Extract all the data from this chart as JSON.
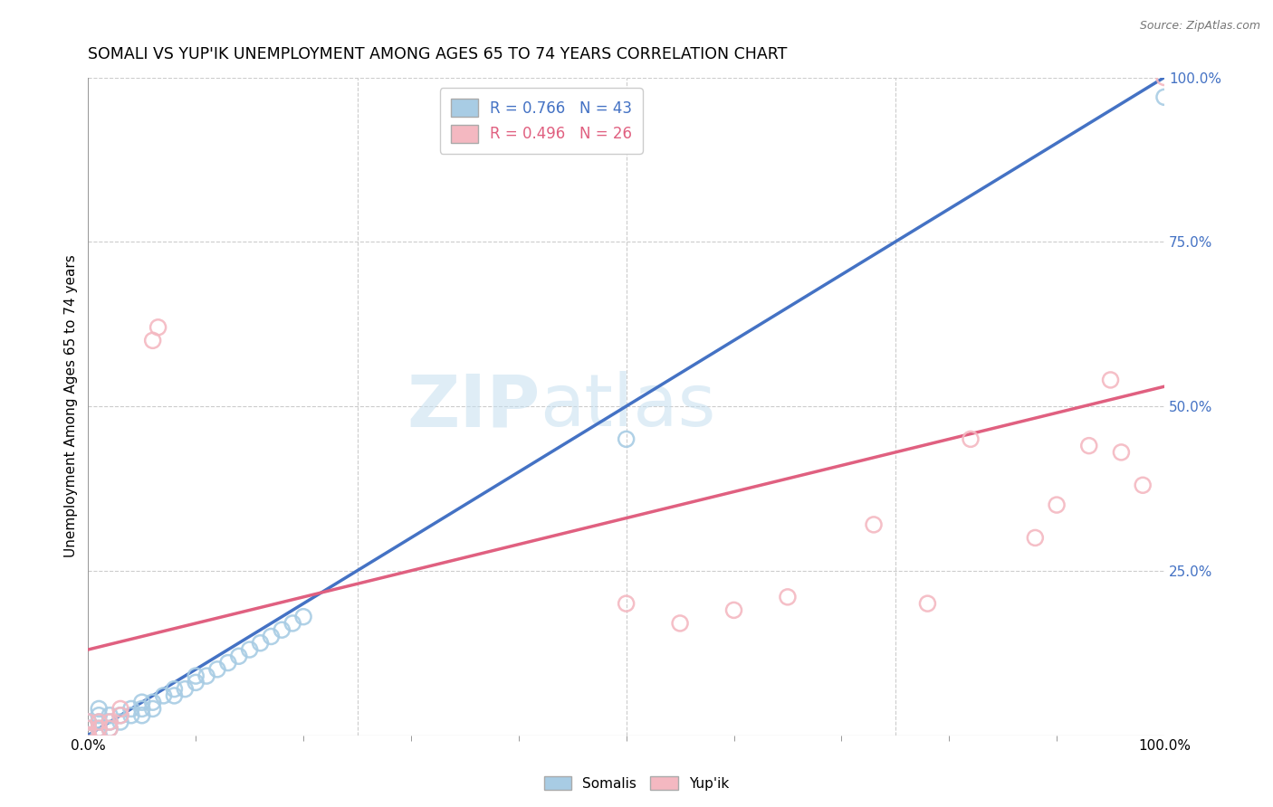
{
  "title": "SOMALI VS YUP'IK UNEMPLOYMENT AMONG AGES 65 TO 74 YEARS CORRELATION CHART",
  "source_text": "Source: ZipAtlas.com",
  "ylabel": "Unemployment Among Ages 65 to 74 years",
  "xlim": [
    0,
    1.0
  ],
  "ylim": [
    0,
    1.0
  ],
  "somali_R": 0.766,
  "somali_N": 43,
  "yupik_R": 0.496,
  "yupik_N": 26,
  "somali_color": "#a8cce4",
  "yupik_color": "#f4b8c1",
  "somali_line_color": "#4472c4",
  "yupik_line_color": "#e06080",
  "dashed_line_color": "#a0b8d8",
  "background_color": "#ffffff",
  "grid_color": "#cccccc",
  "somali_line_x0": 0.0,
  "somali_line_y0": 0.0,
  "somali_line_x1": 1.0,
  "somali_line_y1": 1.0,
  "yupik_line_x0": 0.0,
  "yupik_line_y0": 0.13,
  "yupik_line_x1": 1.0,
  "yupik_line_y1": 0.53,
  "somali_x": [
    0.0,
    0.0,
    0.0,
    0.0,
    0.0,
    0.0,
    0.0,
    0.0,
    0.01,
    0.01,
    0.01,
    0.01,
    0.01,
    0.02,
    0.02,
    0.02,
    0.03,
    0.03,
    0.04,
    0.04,
    0.05,
    0.05,
    0.05,
    0.06,
    0.06,
    0.07,
    0.08,
    0.08,
    0.09,
    0.1,
    0.1,
    0.11,
    0.12,
    0.13,
    0.14,
    0.15,
    0.16,
    0.17,
    0.18,
    0.19,
    0.2,
    0.5,
    1.0
  ],
  "somali_y": [
    0.0,
    0.0,
    0.0,
    0.0,
    0.01,
    0.01,
    0.02,
    0.02,
    0.0,
    0.01,
    0.02,
    0.03,
    0.04,
    0.01,
    0.02,
    0.03,
    0.02,
    0.03,
    0.03,
    0.04,
    0.03,
    0.04,
    0.05,
    0.04,
    0.05,
    0.06,
    0.06,
    0.07,
    0.07,
    0.08,
    0.09,
    0.09,
    0.1,
    0.11,
    0.12,
    0.13,
    0.14,
    0.15,
    0.16,
    0.17,
    0.18,
    0.45,
    0.97
  ],
  "yupik_x": [
    0.0,
    0.0,
    0.0,
    0.0,
    0.01,
    0.01,
    0.02,
    0.02,
    0.03,
    0.03,
    0.06,
    0.065,
    0.5,
    0.55,
    0.6,
    0.65,
    0.73,
    0.78,
    0.82,
    0.88,
    0.9,
    0.93,
    0.95,
    0.96,
    0.98,
    1.0
  ],
  "yupik_y": [
    0.0,
    0.0,
    0.01,
    0.02,
    0.01,
    0.02,
    0.01,
    0.02,
    0.03,
    0.04,
    0.6,
    0.62,
    0.2,
    0.17,
    0.19,
    0.21,
    0.32,
    0.2,
    0.45,
    0.3,
    0.35,
    0.44,
    0.54,
    0.43,
    0.38,
    1.0
  ]
}
